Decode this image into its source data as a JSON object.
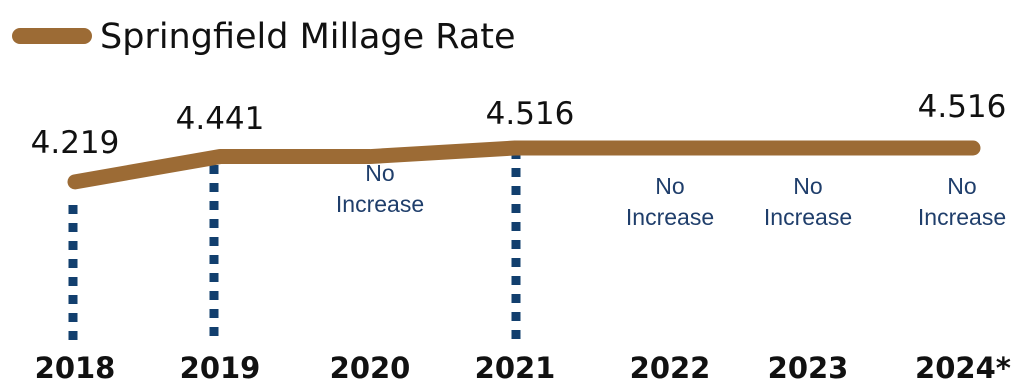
{
  "chart_data": {
    "type": "line",
    "categories": [
      "2018",
      "2019",
      "2020",
      "2021",
      "2022",
      "2023",
      "2024*"
    ],
    "series": [
      {
        "name": "Springfield Millage Rate",
        "values": [
          4.219,
          4.441,
          4.441,
          4.516,
          4.516,
          4.516,
          4.516
        ],
        "color": "#9C6B35"
      }
    ],
    "value_labels": [
      {
        "category": "2018",
        "text": "4.219"
      },
      {
        "category": "2019",
        "text": "4.441"
      },
      {
        "category": "2021",
        "text": "4.516"
      },
      {
        "category": "2024*",
        "text": "4.516"
      }
    ],
    "annotations": [
      {
        "category": "2020",
        "lines": [
          "No",
          "Increase"
        ]
      },
      {
        "category": "2022",
        "lines": [
          "No",
          "Increase"
        ]
      },
      {
        "category": "2023",
        "lines": [
          "No",
          "Increase"
        ]
      },
      {
        "category": "2024*",
        "lines": [
          "No",
          "Increase"
        ]
      }
    ],
    "increase_markers": [
      "2018",
      "2019",
      "2021"
    ],
    "marker_color": "#123F6E",
    "annotation_color": "#1F3E6B",
    "legend_position": "top-left",
    "grid": false,
    "axes_visible": false
  }
}
